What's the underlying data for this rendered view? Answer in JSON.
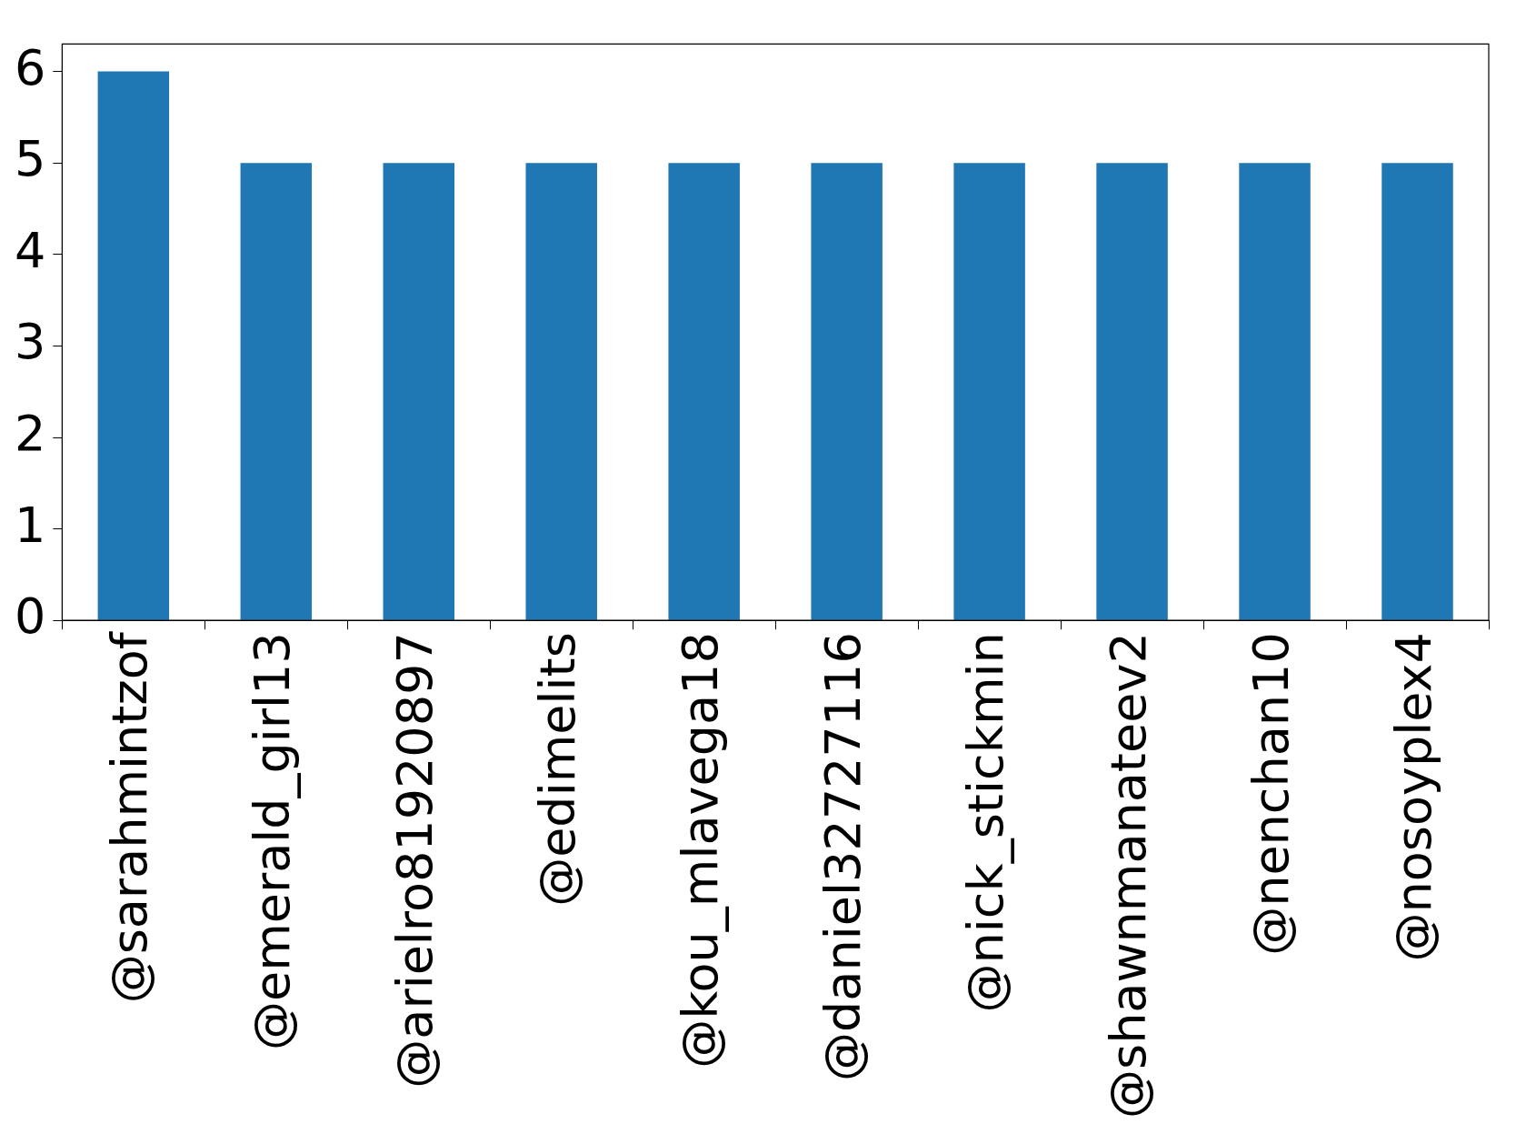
{
  "chart_data": {
    "type": "bar",
    "categories": [
      "@sarahmintzof",
      "@emerald_girl13",
      "@arielro81920897",
      "@edimelits",
      "@kou_mlavega18",
      "@daniel32727116",
      "@nick_stickmin",
      "@shawnmanateev2",
      "@nenchan10",
      "@nosoyplex4"
    ],
    "values": [
      6,
      5,
      5,
      5,
      5,
      5,
      5,
      5,
      5,
      5
    ],
    "color": "#1f77b4",
    "ylim": [
      0,
      6.3
    ],
    "yticks": [
      0,
      1,
      2,
      3,
      4,
      5,
      6
    ],
    "grid": false,
    "legend": false
  }
}
